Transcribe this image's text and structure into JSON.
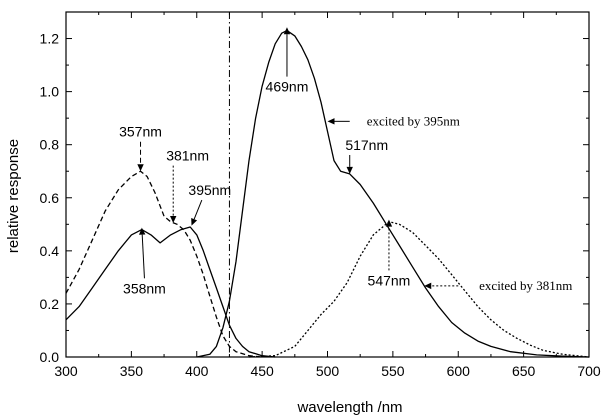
{
  "chart_data": {
    "type": "line",
    "title": "",
    "xlabel": "wavelength /nm",
    "ylabel": "relative response",
    "xlim": [
      300,
      700
    ],
    "ylim": [
      0,
      1.3
    ],
    "x_ticks": [
      300,
      350,
      400,
      450,
      500,
      550,
      600,
      650,
      700
    ],
    "y_ticks": [
      0.0,
      0.2,
      0.4,
      0.6,
      0.8,
      1.0,
      1.2
    ],
    "y_tick_labels": [
      "0.0",
      "0.2",
      "0.4",
      "0.6",
      "0.8",
      "1.0",
      "1.2"
    ],
    "grid": false,
    "reference_line_x": 425,
    "series": [
      {
        "style": "solid",
        "points": [
          [
            300,
            0.14
          ],
          [
            310,
            0.19
          ],
          [
            320,
            0.26
          ],
          [
            330,
            0.33
          ],
          [
            340,
            0.4
          ],
          [
            350,
            0.46
          ],
          [
            358,
            0.48
          ],
          [
            365,
            0.46
          ],
          [
            372,
            0.43
          ],
          [
            380,
            0.46
          ],
          [
            388,
            0.48
          ],
          [
            395,
            0.49
          ],
          [
            400,
            0.46
          ],
          [
            405,
            0.4
          ],
          [
            410,
            0.33
          ],
          [
            415,
            0.26
          ],
          [
            420,
            0.19
          ],
          [
            425,
            0.12
          ],
          [
            430,
            0.07
          ],
          [
            435,
            0.04
          ],
          [
            440,
            0.02
          ],
          [
            450,
            0.005
          ],
          [
            460,
            0.0
          ]
        ]
      },
      {
        "style": "dashed",
        "points": [
          [
            300,
            0.24
          ],
          [
            310,
            0.33
          ],
          [
            320,
            0.44
          ],
          [
            330,
            0.55
          ],
          [
            340,
            0.63
          ],
          [
            350,
            0.68
          ],
          [
            357,
            0.7
          ],
          [
            362,
            0.68
          ],
          [
            368,
            0.62
          ],
          [
            375,
            0.53
          ],
          [
            380,
            0.51
          ],
          [
            385,
            0.5
          ],
          [
            390,
            0.48
          ],
          [
            395,
            0.44
          ],
          [
            400,
            0.38
          ],
          [
            405,
            0.31
          ],
          [
            410,
            0.23
          ],
          [
            415,
            0.15
          ],
          [
            420,
            0.08
          ],
          [
            425,
            0.04
          ],
          [
            430,
            0.02
          ],
          [
            440,
            0.005
          ],
          [
            450,
            0.0
          ]
        ]
      },
      {
        "style": "solid",
        "points": [
          [
            400,
            0.0
          ],
          [
            410,
            0.01
          ],
          [
            415,
            0.04
          ],
          [
            420,
            0.11
          ],
          [
            425,
            0.21
          ],
          [
            430,
            0.36
          ],
          [
            435,
            0.55
          ],
          [
            440,
            0.74
          ],
          [
            445,
            0.9
          ],
          [
            450,
            1.02
          ],
          [
            455,
            1.11
          ],
          [
            460,
            1.18
          ],
          [
            465,
            1.22
          ],
          [
            469,
            1.23
          ],
          [
            475,
            1.21
          ],
          [
            480,
            1.17
          ],
          [
            485,
            1.12
          ],
          [
            490,
            1.05
          ],
          [
            495,
            0.96
          ],
          [
            500,
            0.85
          ],
          [
            505,
            0.74
          ],
          [
            510,
            0.7
          ],
          [
            517,
            0.69
          ],
          [
            525,
            0.65
          ],
          [
            535,
            0.58
          ],
          [
            545,
            0.5
          ],
          [
            555,
            0.42
          ],
          [
            565,
            0.34
          ],
          [
            575,
            0.26
          ],
          [
            585,
            0.19
          ],
          [
            595,
            0.13
          ],
          [
            605,
            0.09
          ],
          [
            615,
            0.06
          ],
          [
            625,
            0.04
          ],
          [
            640,
            0.02
          ],
          [
            660,
            0.008
          ],
          [
            680,
            0.003
          ],
          [
            700,
            0.0
          ]
        ]
      },
      {
        "style": "dotted",
        "points": [
          [
            440,
            0.0
          ],
          [
            460,
            0.005
          ],
          [
            475,
            0.04
          ],
          [
            485,
            0.1
          ],
          [
            495,
            0.16
          ],
          [
            505,
            0.21
          ],
          [
            515,
            0.28
          ],
          [
            525,
            0.38
          ],
          [
            535,
            0.46
          ],
          [
            547,
            0.51
          ],
          [
            555,
            0.5
          ],
          [
            565,
            0.47
          ],
          [
            575,
            0.42
          ],
          [
            585,
            0.37
          ],
          [
            595,
            0.31
          ],
          [
            605,
            0.25
          ],
          [
            615,
            0.19
          ],
          [
            625,
            0.14
          ],
          [
            635,
            0.1
          ],
          [
            645,
            0.07
          ],
          [
            655,
            0.045
          ],
          [
            665,
            0.025
          ],
          [
            680,
            0.01
          ],
          [
            700,
            0.0
          ]
        ]
      }
    ],
    "annotations": [
      {
        "text": "357nm",
        "x": 357,
        "y": 0.7,
        "tx": 357,
        "ty": 0.83,
        "arrow": "dashed"
      },
      {
        "text": "381nm",
        "x": 382,
        "y": 0.505,
        "tx": 393,
        "ty": 0.74,
        "arrow": "dotted"
      },
      {
        "text": "395nm",
        "x": 396,
        "y": 0.495,
        "tx": 410,
        "ty": 0.61,
        "arrow": "solid"
      },
      {
        "text": "358nm",
        "x": 358,
        "y": 0.48,
        "tx": 360,
        "ty": 0.24,
        "arrow": "solid",
        "below": true
      },
      {
        "text": "469nm",
        "x": 469,
        "y": 1.235,
        "tx": 469,
        "ty": 1.0,
        "arrow": "solid",
        "below": true
      },
      {
        "text": "517nm",
        "x": 517,
        "y": 0.69,
        "tx": 530,
        "ty": 0.78,
        "arrow": "solid"
      },
      {
        "text": "547nm",
        "x": 547,
        "y": 0.51,
        "tx": 547,
        "ty": 0.27,
        "arrow": "dotted",
        "below": true
      }
    ],
    "legend_labels": [
      {
        "text": "excited by 395nm",
        "tx": 530,
        "ty": 0.888,
        "ax1": 517,
        "ax0": 500,
        "arrow": "solid"
      },
      {
        "text": "excited by 381nm",
        "tx": 616,
        "ty": 0.268,
        "ax1": 600,
        "ax0": 574,
        "arrow": "dotted"
      }
    ]
  }
}
